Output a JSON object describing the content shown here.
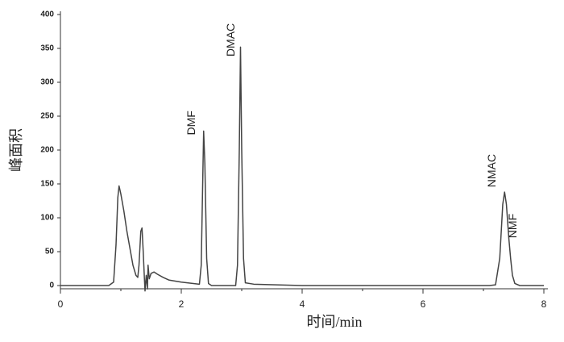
{
  "chart_data": {
    "type": "line",
    "x_label": "时间/min",
    "y_label": "峰面积",
    "xlim": [
      0,
      8
    ],
    "ylim": [
      0,
      400
    ],
    "xticks": [
      0,
      2,
      4,
      6,
      8
    ],
    "xminorticks": [
      1,
      3,
      5,
      7
    ],
    "yticks": [
      0,
      50,
      100,
      150,
      200,
      250,
      300,
      350,
      400
    ],
    "series": [
      {
        "color": "#444444",
        "x": [
          0,
          0.8,
          0.88,
          0.92,
          0.95,
          0.97,
          1.0,
          1.05,
          1.1,
          1.15,
          1.2,
          1.25,
          1.28,
          1.3,
          1.33,
          1.35,
          1.37,
          1.39,
          1.4,
          1.42,
          1.44,
          1.45,
          1.47,
          1.5,
          1.55,
          1.6,
          1.7,
          1.8,
          2.0,
          2.2,
          2.3,
          2.33,
          2.36,
          2.37,
          2.39,
          2.42,
          2.45,
          2.5,
          2.9,
          2.93,
          2.96,
          2.98,
          3.0,
          3.03,
          3.06,
          3.2,
          4.0,
          7.1,
          7.2,
          7.27,
          7.32,
          7.35,
          7.38,
          7.42,
          7.45,
          7.48,
          7.52,
          7.6,
          8.0
        ],
        "values": [
          0,
          0,
          5,
          60,
          130,
          147,
          135,
          110,
          80,
          55,
          30,
          15,
          12,
          30,
          80,
          85,
          50,
          10,
          -8,
          15,
          -5,
          30,
          10,
          18,
          20,
          17,
          12,
          8,
          5,
          3,
          2,
          30,
          180,
          228,
          180,
          40,
          3,
          0,
          0,
          30,
          200,
          352,
          200,
          40,
          4,
          2,
          0,
          0,
          1,
          40,
          120,
          138,
          120,
          70,
          40,
          15,
          3,
          0,
          0
        ]
      }
    ],
    "annotations": [
      {
        "text": "DMF",
        "x": 2.18,
        "y": 222
      },
      {
        "text": "DMAC",
        "x": 2.83,
        "y": 338
      },
      {
        "text": "NMAC",
        "x": 7.15,
        "y": 145
      },
      {
        "text": "NMF",
        "x": 7.5,
        "y": 70
      }
    ]
  }
}
